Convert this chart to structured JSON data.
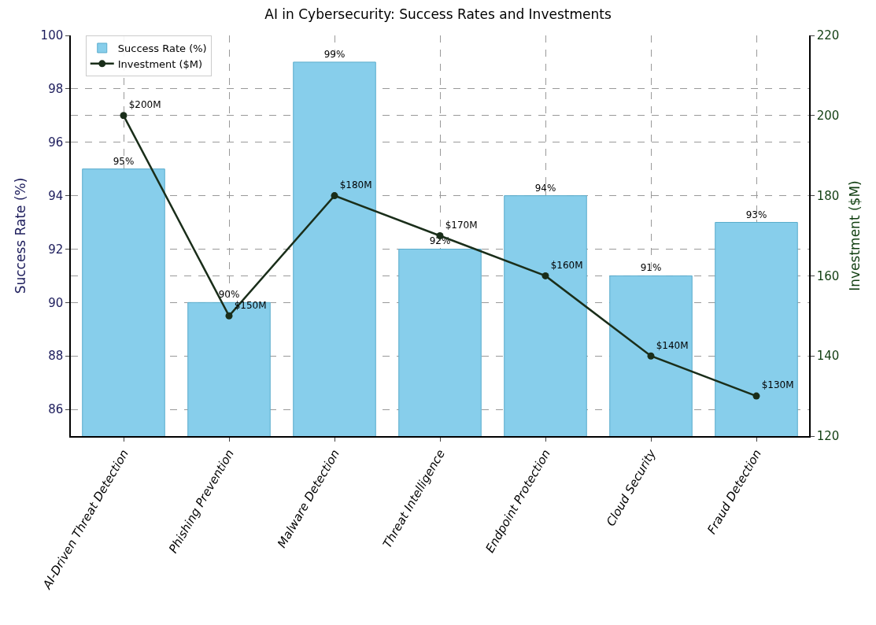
{
  "chart_data": {
    "type": "bar",
    "title": "AI in Cybersecurity: Success Rates and Investments",
    "ylabel": "Success Rate (%)",
    "y2label": "Investment ($M)",
    "categories": [
      "AI-Driven Threat Detection",
      "Phishing Prevention",
      "Malware Detection",
      "Threat Intelligence",
      "Endpoint Protection",
      "Cloud Security",
      "Fraud Detection"
    ],
    "series": [
      {
        "name": "Success Rate (%)",
        "color": "#87ceeb",
        "values": [
          95,
          90,
          99,
          92,
          94,
          91,
          93
        ],
        "value_labels": [
          "95%",
          "90%",
          "99%",
          "92%",
          "94%",
          "91%",
          "93%"
        ]
      },
      {
        "name": "Investment ($M)",
        "type": "line",
        "axis": "y2",
        "color": "#1a2e1a",
        "values": [
          200,
          150,
          180,
          170,
          160,
          140,
          130
        ],
        "value_labels": [
          "$200M",
          "$150M",
          "$180M",
          "$170M",
          "$160M",
          "$140M",
          "$130M"
        ]
      }
    ],
    "ylim": [
      85,
      100
    ],
    "yticks": [
      86,
      88,
      90,
      92,
      94,
      96,
      98,
      100
    ],
    "y2lim": [
      120,
      220
    ],
    "y2ticks": [
      120,
      140,
      160,
      180,
      200,
      220
    ],
    "grid": true,
    "legend": "top left",
    "marker": "circle",
    "line_style": "solid"
  }
}
